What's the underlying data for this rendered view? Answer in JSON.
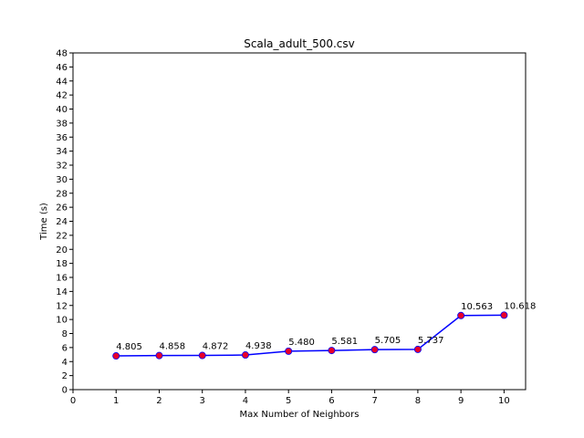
{
  "chart_data": {
    "type": "line",
    "title": "Scala_adult_500.csv",
    "xlabel": "Max Number of Neighbors",
    "ylabel": "Time (s)",
    "xlim": [
      0,
      10.5
    ],
    "ylim": [
      0,
      48
    ],
    "xticks": [
      0,
      1,
      2,
      3,
      4,
      5,
      6,
      7,
      8,
      9,
      10
    ],
    "yticks": [
      0,
      2,
      4,
      6,
      8,
      10,
      12,
      14,
      16,
      18,
      20,
      22,
      24,
      26,
      28,
      30,
      32,
      34,
      36,
      38,
      40,
      42,
      44,
      46,
      48
    ],
    "grid": false,
    "line_color": "#0000ff",
    "marker_color": "#e8002a",
    "x": [
      1,
      2,
      3,
      4,
      5,
      6,
      7,
      8,
      9,
      10
    ],
    "y": [
      4.805,
      4.858,
      4.872,
      4.938,
      5.48,
      5.581,
      5.705,
      5.737,
      10.563,
      10.618
    ],
    "data_labels": [
      "4.805",
      "4.858",
      "4.872",
      "4.938",
      "5.480",
      "5.581",
      "5.705",
      "5.737",
      "10.563",
      "10.618"
    ]
  }
}
